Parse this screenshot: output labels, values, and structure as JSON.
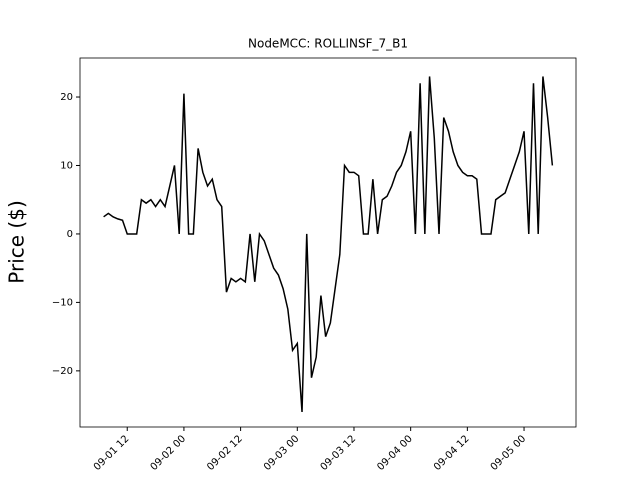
{
  "chart_data": {
    "type": "line",
    "title": "NodeMCC: ROLLINSF_7_B1",
    "y_label": "Price ($)",
    "color": "#000000",
    "x": [
      "09-01 07",
      "09-01 08",
      "09-01 09",
      "09-01 10",
      "09-01 11",
      "09-01 12",
      "09-01 13",
      "09-01 14",
      "09-01 15",
      "09-01 16",
      "09-01 17",
      "09-01 18",
      "09-01 19",
      "09-01 20",
      "09-01 21",
      "09-01 22",
      "09-01 23",
      "09-02 00",
      "09-02 01",
      "09-02 02",
      "09-02 03",
      "09-02 04",
      "09-02 05",
      "09-02 06",
      "09-02 07",
      "09-02 08",
      "09-02 09",
      "09-02 10",
      "09-02 11",
      "09-02 12",
      "09-02 13",
      "09-02 14",
      "09-02 15",
      "09-02 16",
      "09-02 17",
      "09-02 18",
      "09-02 19",
      "09-02 20",
      "09-02 21",
      "09-02 22",
      "09-02 23",
      "09-03 00",
      "09-03 01",
      "09-03 02",
      "09-03 03",
      "09-03 04",
      "09-03 05",
      "09-03 06",
      "09-03 07",
      "09-03 08",
      "09-03 09",
      "09-03 10",
      "09-03 11",
      "09-03 12",
      "09-03 13",
      "09-03 14",
      "09-03 15",
      "09-03 16",
      "09-03 17",
      "09-03 18",
      "09-03 19",
      "09-03 20",
      "09-03 21",
      "09-03 22",
      "09-03 23",
      "09-04 00",
      "09-04 01",
      "09-04 02",
      "09-04 03",
      "09-04 04",
      "09-04 05",
      "09-04 06",
      "09-04 07",
      "09-04 08",
      "09-04 09",
      "09-04 10",
      "09-04 11",
      "09-04 12",
      "09-04 13",
      "09-04 14",
      "09-04 15",
      "09-04 16",
      "09-04 17",
      "09-04 18",
      "09-04 19",
      "09-04 20",
      "09-04 21",
      "09-04 22",
      "09-04 23",
      "09-05 00",
      "09-05 01",
      "09-05 02",
      "09-05 03",
      "09-05 04",
      "09-05 05",
      "09-05 06"
    ],
    "values": [
      2.5,
      3,
      2.5,
      2.2,
      2,
      0,
      0,
      0,
      5,
      4.5,
      5,
      4,
      5,
      4,
      7,
      10,
      0,
      20.5,
      0,
      0,
      12.5,
      9,
      7,
      8,
      5,
      4,
      -8.5,
      -6.5,
      -7,
      -6.5,
      -7,
      0,
      -7,
      0,
      -1,
      -3,
      -5,
      -6,
      -8,
      -11,
      -17,
      -16,
      -26,
      0,
      -21,
      -18,
      -9,
      -15,
      -13,
      -8,
      -3,
      10,
      9,
      9,
      8.5,
      0,
      0,
      8,
      0,
      5,
      5.5,
      7,
      9,
      10,
      12,
      15,
      0,
      22,
      0,
      23,
      14,
      0,
      17,
      15,
      12,
      10,
      9,
      8.5,
      8.5,
      8,
      0,
      0,
      0,
      5,
      5.5,
      6,
      8,
      10,
      12,
      15,
      0,
      22,
      0,
      23,
      17,
      10
    ],
    "xlim": [
      "09-01 02",
      "09-05 11"
    ],
    "xticks": [
      "09-01 12",
      "09-02 00",
      "09-02 12",
      "09-03 00",
      "09-03 12",
      "09-04 00",
      "09-04 12",
      "09-05 00"
    ],
    "ylim": [
      -28.2,
      25.7
    ],
    "yticks": [
      {
        "value": -20,
        "label": "−20"
      },
      {
        "value": -10,
        "label": "−10"
      },
      0,
      10,
      20
    ]
  }
}
